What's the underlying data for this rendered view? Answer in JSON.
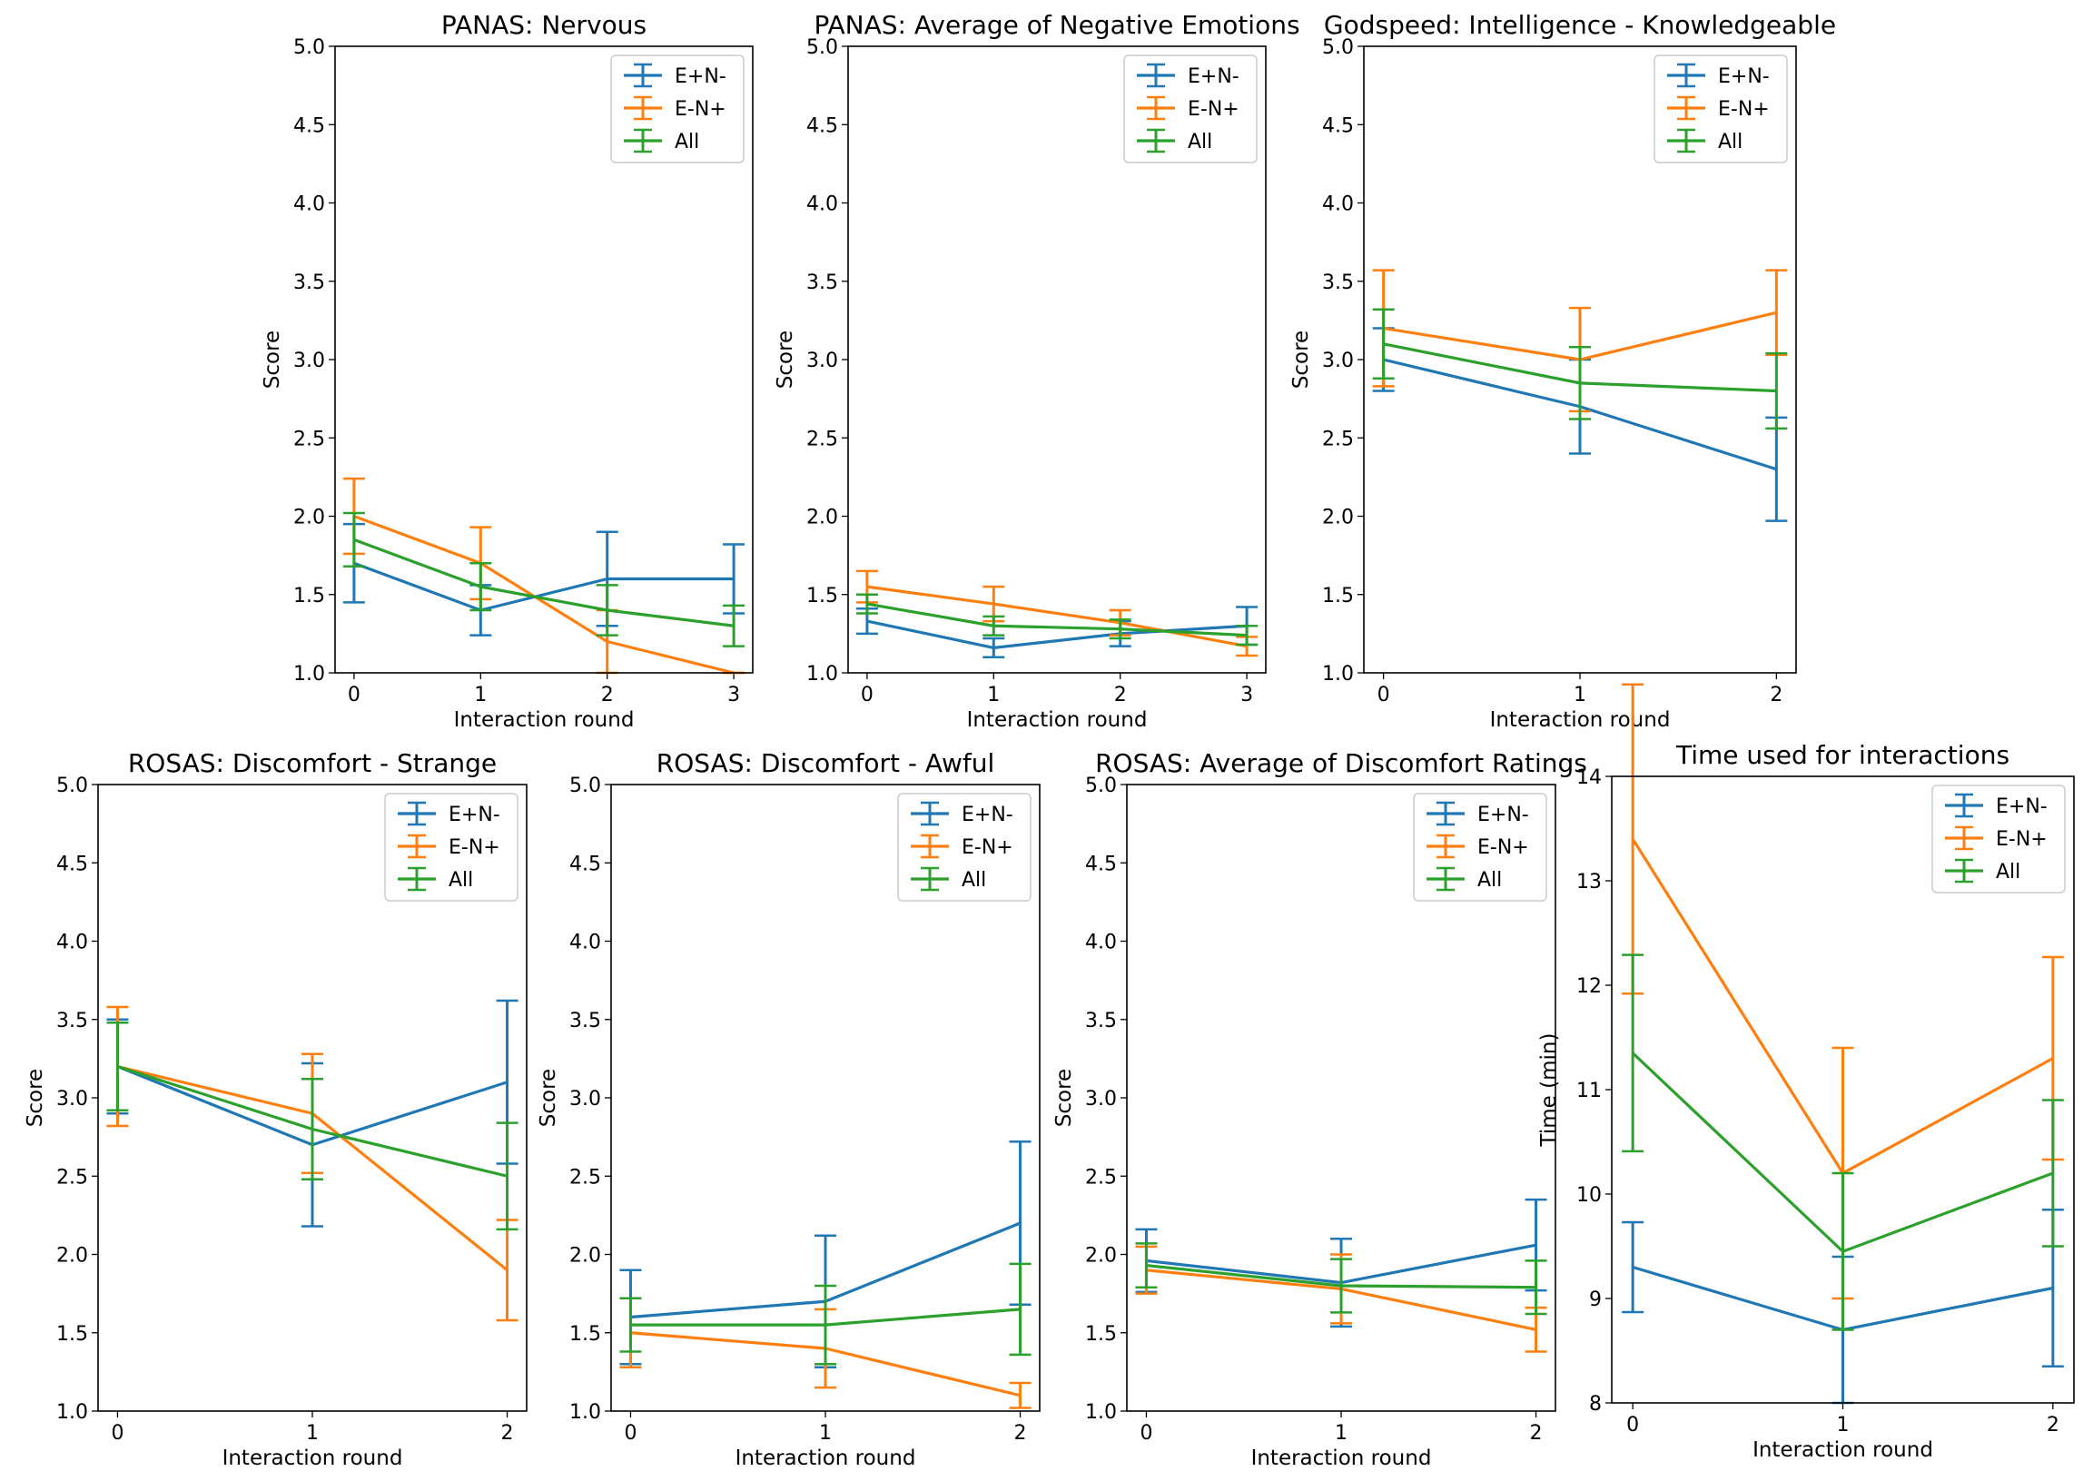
{
  "figure": {
    "colors": {
      "E+N-": "#1f77b4",
      "E-N+": "#ff7f0e",
      "All": "#2ca02c"
    }
  },
  "chart_data": [
    {
      "type": "line",
      "title": "PANAS: Nervous",
      "xlabel": "Interaction round",
      "ylabel": "Score",
      "x": [
        0,
        1,
        2,
        3
      ],
      "ylim": [
        1.0,
        5.0
      ],
      "yticks": [
        "1.0",
        "1.5",
        "2.0",
        "2.5",
        "3.0",
        "3.5",
        "4.0",
        "4.5",
        "5.0"
      ],
      "grid": false,
      "legend_position": "top-right",
      "series": [
        {
          "name": "E+N-",
          "values": [
            1.7,
            1.4,
            1.6,
            1.6
          ],
          "error": [
            0.25,
            0.16,
            0.3,
            0.22
          ]
        },
        {
          "name": "E-N+",
          "values": [
            2.0,
            1.7,
            1.2,
            1.0
          ],
          "error": [
            0.24,
            0.23,
            0.2,
            0.0
          ]
        },
        {
          "name": "All",
          "values": [
            1.85,
            1.55,
            1.4,
            1.3
          ],
          "error": [
            0.17,
            0.15,
            0.16,
            0.13
          ]
        }
      ]
    },
    {
      "type": "line",
      "title": "PANAS: Average of Negative Emotions",
      "xlabel": "Interaction round",
      "ylabel": "Score",
      "x": [
        0,
        1,
        2,
        3
      ],
      "ylim": [
        1.0,
        5.0
      ],
      "yticks": [
        "1.0",
        "1.5",
        "2.0",
        "2.5",
        "3.0",
        "3.5",
        "4.0",
        "4.5",
        "5.0"
      ],
      "grid": false,
      "legend_position": "top-right",
      "series": [
        {
          "name": "E+N-",
          "values": [
            1.33,
            1.16,
            1.25,
            1.3
          ],
          "error": [
            0.08,
            0.06,
            0.08,
            0.12
          ]
        },
        {
          "name": "E-N+",
          "values": [
            1.55,
            1.44,
            1.32,
            1.17
          ],
          "error": [
            0.1,
            0.11,
            0.08,
            0.06
          ]
        },
        {
          "name": "All",
          "values": [
            1.44,
            1.3,
            1.28,
            1.24
          ],
          "error": [
            0.06,
            0.06,
            0.06,
            0.06
          ]
        }
      ]
    },
    {
      "type": "line",
      "title": "Godspeed: Intelligence - Knowledgeable",
      "xlabel": "Interaction round",
      "ylabel": "Score",
      "x": [
        0,
        1,
        2
      ],
      "ylim": [
        1.0,
        5.0
      ],
      "yticks": [
        "1.0",
        "1.5",
        "2.0",
        "2.5",
        "3.0",
        "3.5",
        "4.0",
        "4.5",
        "5.0"
      ],
      "grid": false,
      "legend_position": "top-right",
      "series": [
        {
          "name": "E+N-",
          "values": [
            3.0,
            2.7,
            2.3
          ],
          "error": [
            0.2,
            0.3,
            0.33
          ]
        },
        {
          "name": "E-N+",
          "values": [
            3.2,
            3.0,
            3.3
          ],
          "error": [
            0.37,
            0.33,
            0.27
          ]
        },
        {
          "name": "All",
          "values": [
            3.1,
            2.85,
            2.8
          ],
          "error": [
            0.22,
            0.23,
            0.24
          ]
        }
      ]
    },
    {
      "type": "line",
      "title": "ROSAS: Discomfort - Strange",
      "xlabel": "Interaction round",
      "ylabel": "Score",
      "x": [
        0,
        1,
        2
      ],
      "ylim": [
        1.0,
        5.0
      ],
      "yticks": [
        "1.0",
        "1.5",
        "2.0",
        "2.5",
        "3.0",
        "3.5",
        "4.0",
        "4.5",
        "5.0"
      ],
      "grid": false,
      "legend_position": "top-right",
      "series": [
        {
          "name": "E+N-",
          "values": [
            3.2,
            2.7,
            3.1
          ],
          "error": [
            0.3,
            0.52,
            0.52
          ]
        },
        {
          "name": "E-N+",
          "values": [
            3.2,
            2.9,
            1.9
          ],
          "error": [
            0.38,
            0.38,
            0.32
          ]
        },
        {
          "name": "All",
          "values": [
            3.2,
            2.8,
            2.5
          ],
          "error": [
            0.28,
            0.32,
            0.34
          ]
        }
      ]
    },
    {
      "type": "line",
      "title": "ROSAS: Discomfort - Awful",
      "xlabel": "Interaction round",
      "ylabel": "Score",
      "x": [
        0,
        1,
        2
      ],
      "ylim": [
        1.0,
        5.0
      ],
      "yticks": [
        "1.0",
        "1.5",
        "2.0",
        "2.5",
        "3.0",
        "3.5",
        "4.0",
        "4.5",
        "5.0"
      ],
      "grid": false,
      "legend_position": "top-right",
      "series": [
        {
          "name": "E+N-",
          "values": [
            1.6,
            1.7,
            2.2
          ],
          "error": [
            0.3,
            0.42,
            0.52
          ]
        },
        {
          "name": "E-N+",
          "values": [
            1.5,
            1.4,
            1.1
          ],
          "error": [
            0.22,
            0.25,
            0.08
          ]
        },
        {
          "name": "All",
          "values": [
            1.55,
            1.55,
            1.65
          ],
          "error": [
            0.17,
            0.25,
            0.29
          ]
        }
      ]
    },
    {
      "type": "line",
      "title": "ROSAS: Average of Discomfort Ratings",
      "xlabel": "Interaction round",
      "ylabel": "Score",
      "x": [
        0,
        1,
        2
      ],
      "ylim": [
        1.0,
        5.0
      ],
      "yticks": [
        "1.0",
        "1.5",
        "2.0",
        "2.5",
        "3.0",
        "3.5",
        "4.0",
        "4.5",
        "5.0"
      ],
      "grid": false,
      "legend_position": "top-right",
      "series": [
        {
          "name": "E+N-",
          "values": [
            1.96,
            1.82,
            2.06
          ],
          "error": [
            0.2,
            0.28,
            0.29
          ]
        },
        {
          "name": "E-N+",
          "values": [
            1.9,
            1.78,
            1.52
          ],
          "error": [
            0.15,
            0.22,
            0.14
          ]
        },
        {
          "name": "All",
          "values": [
            1.93,
            1.8,
            1.79
          ],
          "error": [
            0.14,
            0.17,
            0.17
          ]
        }
      ]
    },
    {
      "type": "line",
      "title": "Time used for interactions",
      "xlabel": "Interaction round",
      "ylabel": "Time (min)",
      "x": [
        0,
        1,
        2
      ],
      "ylim": [
        8,
        14
      ],
      "yticks": [
        "8",
        "9",
        "10",
        "11",
        "12",
        "13",
        "14"
      ],
      "grid": false,
      "legend_position": "top-right",
      "series": [
        {
          "name": "E+N-",
          "values": [
            9.3,
            8.7,
            9.1
          ],
          "error": [
            0.43,
            0.7,
            0.75
          ]
        },
        {
          "name": "E-N+",
          "values": [
            13.4,
            10.2,
            11.3
          ],
          "error": [
            1.48,
            1.2,
            0.97
          ]
        },
        {
          "name": "All",
          "values": [
            11.35,
            9.45,
            10.2
          ],
          "error": [
            0.94,
            0.75,
            0.7
          ]
        }
      ]
    }
  ]
}
